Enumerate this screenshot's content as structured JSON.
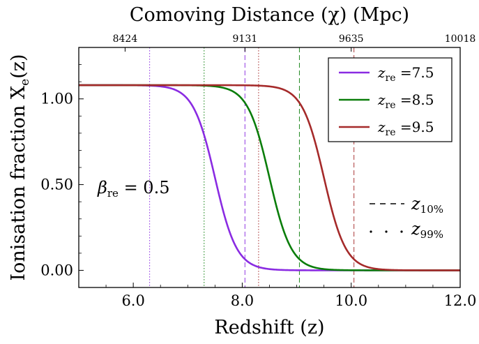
{
  "chart_data": {
    "type": "line",
    "xlabel": "Redshift (z)",
    "ylabel": "Ionisation fraction X",
    "ylabel_sub": "e",
    "ylabel_arg": "(z)",
    "top_axis_label": "Comoving Distance (χ) (Mpc)",
    "xlim": [
      5.0,
      12.0
    ],
    "ylim": [
      -0.1,
      1.3
    ],
    "x_ticks": [
      6.0,
      8.0,
      10.0,
      12.0
    ],
    "x_tick_labels": [
      "6.0",
      "8.0",
      "10.0",
      "12.0"
    ],
    "y_ticks": [
      0.0,
      0.5,
      1.0
    ],
    "y_tick_labels": [
      "0.00",
      "0.50",
      "1.00"
    ],
    "top_ticks": [
      {
        "z": 5.85,
        "label": "8424"
      },
      {
        "z": 8.05,
        "label": "9131"
      },
      {
        "z": 10.0,
        "label": "9635"
      },
      {
        "z": 12.0,
        "label": "10018"
      }
    ],
    "x_max": 1.08,
    "annotation": {
      "symbol": "β",
      "sub": "re",
      "text": " = 0.5"
    },
    "series": [
      {
        "name": "z_re = 7.5",
        "z_re": 7.5,
        "width": 0.4,
        "color": "#8a2be2",
        "z10": 8.05,
        "z99": 6.3
      },
      {
        "name": "z_re = 8.5",
        "z_re": 8.5,
        "width": 0.4,
        "color": "#0a7d0a",
        "z10": 9.05,
        "z99": 7.3
      },
      {
        "name": "z_re = 9.5",
        "z_re": 9.5,
        "width": 0.4,
        "color": "#a52a2a",
        "z10": 10.05,
        "z99": 8.3
      }
    ],
    "legend": {
      "position": "top-right",
      "entries": [
        {
          "pre": "z",
          "sub": "re",
          "post": " =7.5",
          "color": "#8a2be2"
        },
        {
          "pre": "z",
          "sub": "re",
          "post": " =8.5",
          "color": "#0a7d0a"
        },
        {
          "pre": "z",
          "sub": "re",
          "post": " =9.5",
          "color": "#a52a2a"
        }
      ]
    },
    "style_key": [
      {
        "style": "dashed",
        "pre": "z",
        "sub": "10%"
      },
      {
        "style": "dotted",
        "pre": "z",
        "sub": "99%"
      }
    ]
  }
}
